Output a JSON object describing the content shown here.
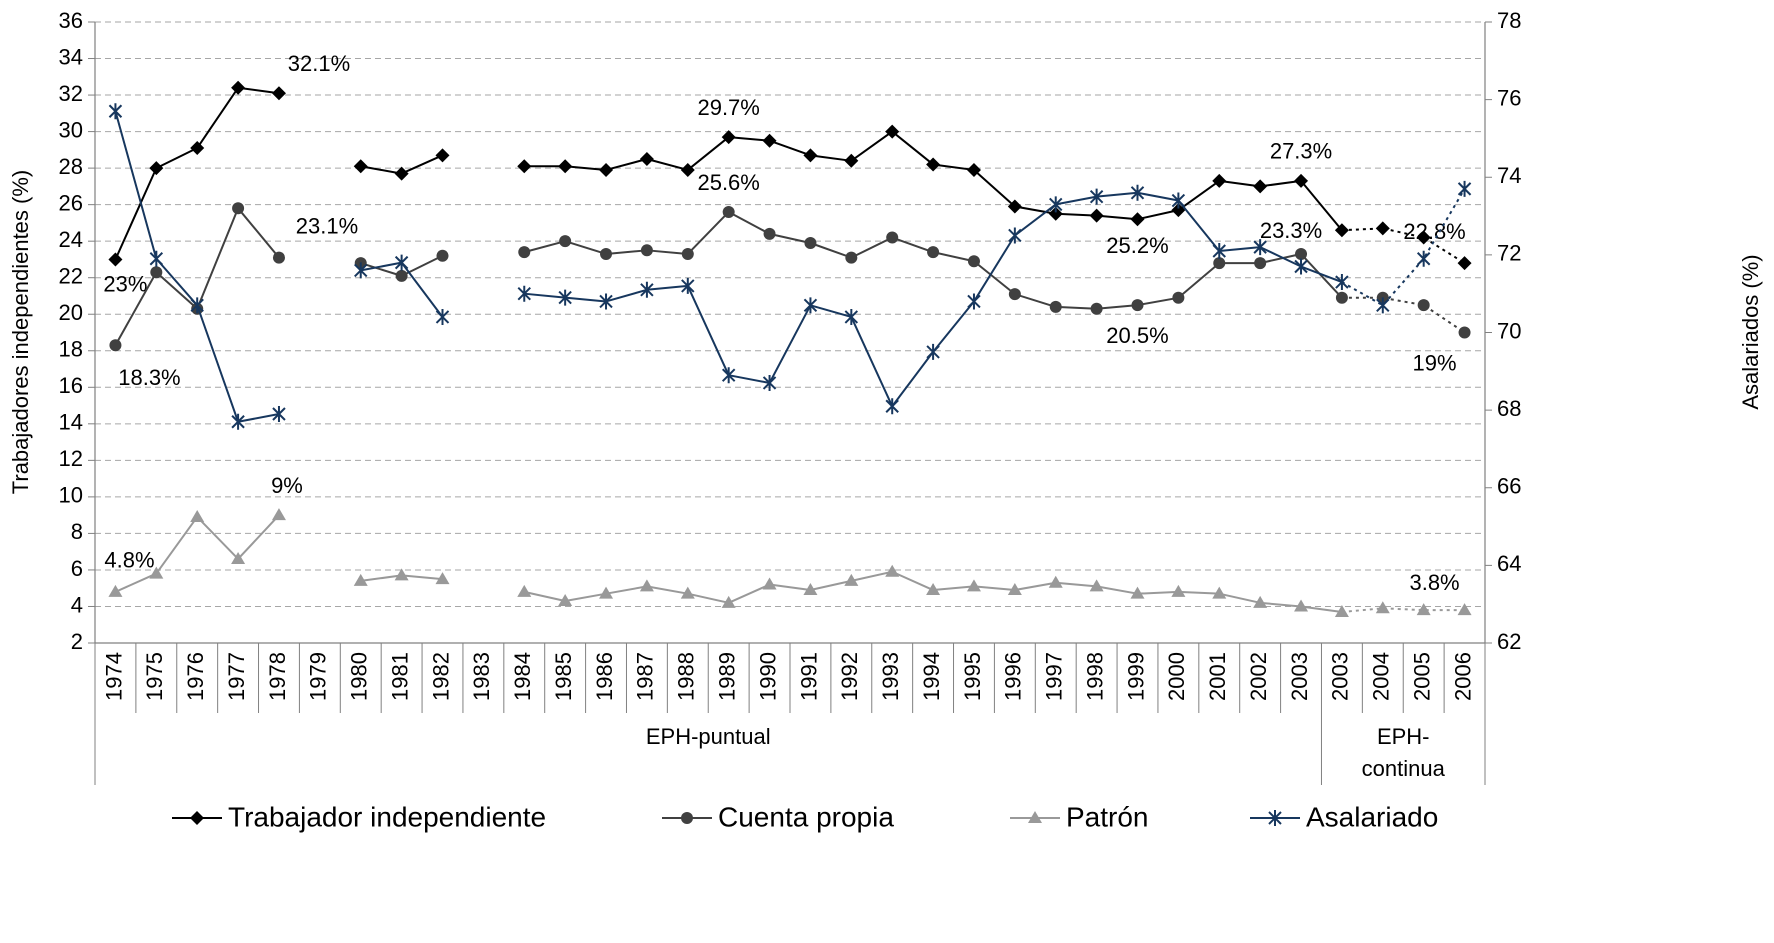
{
  "chart_data": {
    "type": "line",
    "categories": [
      "1974",
      "1975",
      "1976",
      "1977",
      "1978",
      "1979",
      "1980",
      "1981",
      "1982",
      "1983",
      "1984",
      "1985",
      "1986",
      "1987",
      "1988",
      "1989",
      "1990",
      "1991",
      "1992",
      "1993",
      "1994",
      "1995",
      "1996",
      "1997",
      "1998",
      "1999",
      "2000",
      "2001",
      "2002",
      "2003",
      "2003",
      "2004",
      "2005",
      "2006"
    ],
    "groups": [
      {
        "label": "EPH-puntual",
        "span": 30
      },
      {
        "label": "EPH-continua",
        "span": 4
      }
    ],
    "dashed_from": 30,
    "y_label": "Trabajadores independientes (%)",
    "y2_label": "Asalariados (%)",
    "ylim": [
      2,
      36
    ],
    "yticks": [
      2,
      4,
      6,
      8,
      10,
      12,
      14,
      16,
      18,
      20,
      22,
      24,
      26,
      28,
      30,
      32,
      34,
      36
    ],
    "y2lim": [
      62,
      78
    ],
    "y2ticks": [
      62,
      64,
      66,
      68,
      70,
      72,
      74,
      76,
      78
    ],
    "grid": true,
    "legend": "bottom",
    "series": [
      {
        "name": "Trabajador independiente",
        "color": "#000000",
        "marker": "diamond",
        "values": [
          23,
          28.0,
          29.1,
          32.4,
          32.1,
          null,
          28.1,
          27.7,
          28.7,
          null,
          28.1,
          28.1,
          27.9,
          28.5,
          27.9,
          29.7,
          29.5,
          28.7,
          28.4,
          30.0,
          28.2,
          27.9,
          25.9,
          25.5,
          25.4,
          25.2,
          25.7,
          27.3,
          27.0,
          27.3,
          24.6,
          24.7,
          24.2,
          22.8
        ],
        "value_labels": [
          "23%",
          null,
          null,
          null,
          "32.1%",
          null,
          null,
          null,
          null,
          null,
          null,
          null,
          null,
          null,
          null,
          "29.7%",
          null,
          null,
          null,
          null,
          null,
          null,
          null,
          null,
          null,
          "25.2%",
          null,
          null,
          null,
          "27.3%",
          null,
          null,
          null,
          "22.8%"
        ]
      },
      {
        "name": "Cuenta propia",
        "color": "#404040",
        "marker": "circle",
        "values": [
          18.3,
          22.3,
          20.3,
          25.8,
          23.1,
          null,
          22.8,
          22.1,
          23.2,
          null,
          23.4,
          24.0,
          23.3,
          23.5,
          23.3,
          25.6,
          24.4,
          23.9,
          23.1,
          24.2,
          23.4,
          22.9,
          21.1,
          20.4,
          20.3,
          20.5,
          20.9,
          22.8,
          22.8,
          23.3,
          20.9,
          20.9,
          20.5,
          19
        ],
        "value_labels": [
          "18.3%",
          null,
          null,
          null,
          "23.1%",
          null,
          null,
          null,
          null,
          null,
          null,
          null,
          null,
          null,
          null,
          "25.6%",
          null,
          null,
          null,
          null,
          null,
          null,
          null,
          null,
          null,
          "20.5%",
          null,
          null,
          null,
          "23.3%",
          null,
          null,
          null,
          "19%"
        ]
      },
      {
        "name": "Patrón",
        "color": "#999999",
        "marker": "triangle",
        "values": [
          4.8,
          5.8,
          8.9,
          6.6,
          9,
          null,
          5.4,
          5.7,
          5.5,
          null,
          4.8,
          4.3,
          4.7,
          5.1,
          4.7,
          4.2,
          5.2,
          4.9,
          5.4,
          5.9,
          4.9,
          5.1,
          4.9,
          5.3,
          5.1,
          4.7,
          4.8,
          4.7,
          4.2,
          4.0,
          3.7,
          3.9,
          3.8,
          3.8
        ],
        "value_labels": [
          "4.8%",
          null,
          null,
          null,
          "9%",
          null,
          null,
          null,
          null,
          null,
          null,
          null,
          null,
          null,
          null,
          null,
          null,
          null,
          null,
          null,
          null,
          null,
          null,
          null,
          null,
          null,
          null,
          null,
          null,
          null,
          null,
          null,
          null,
          "3.8%"
        ]
      },
      {
        "name": "Asalariado",
        "color": "#17375e",
        "marker": "asterisk",
        "axis": "y2",
        "values": [
          75.7,
          71.9,
          70.7,
          67.7,
          67.9,
          null,
          71.6,
          71.8,
          70.4,
          null,
          71.0,
          70.9,
          70.8,
          71.1,
          71.2,
          68.9,
          68.7,
          70.7,
          70.4,
          68.1,
          69.5,
          70.8,
          72.5,
          73.3,
          73.5,
          73.6,
          73.4,
          72.1,
          72.2,
          71.7,
          71.3,
          70.7,
          71.9,
          73.7
        ]
      }
    ]
  }
}
